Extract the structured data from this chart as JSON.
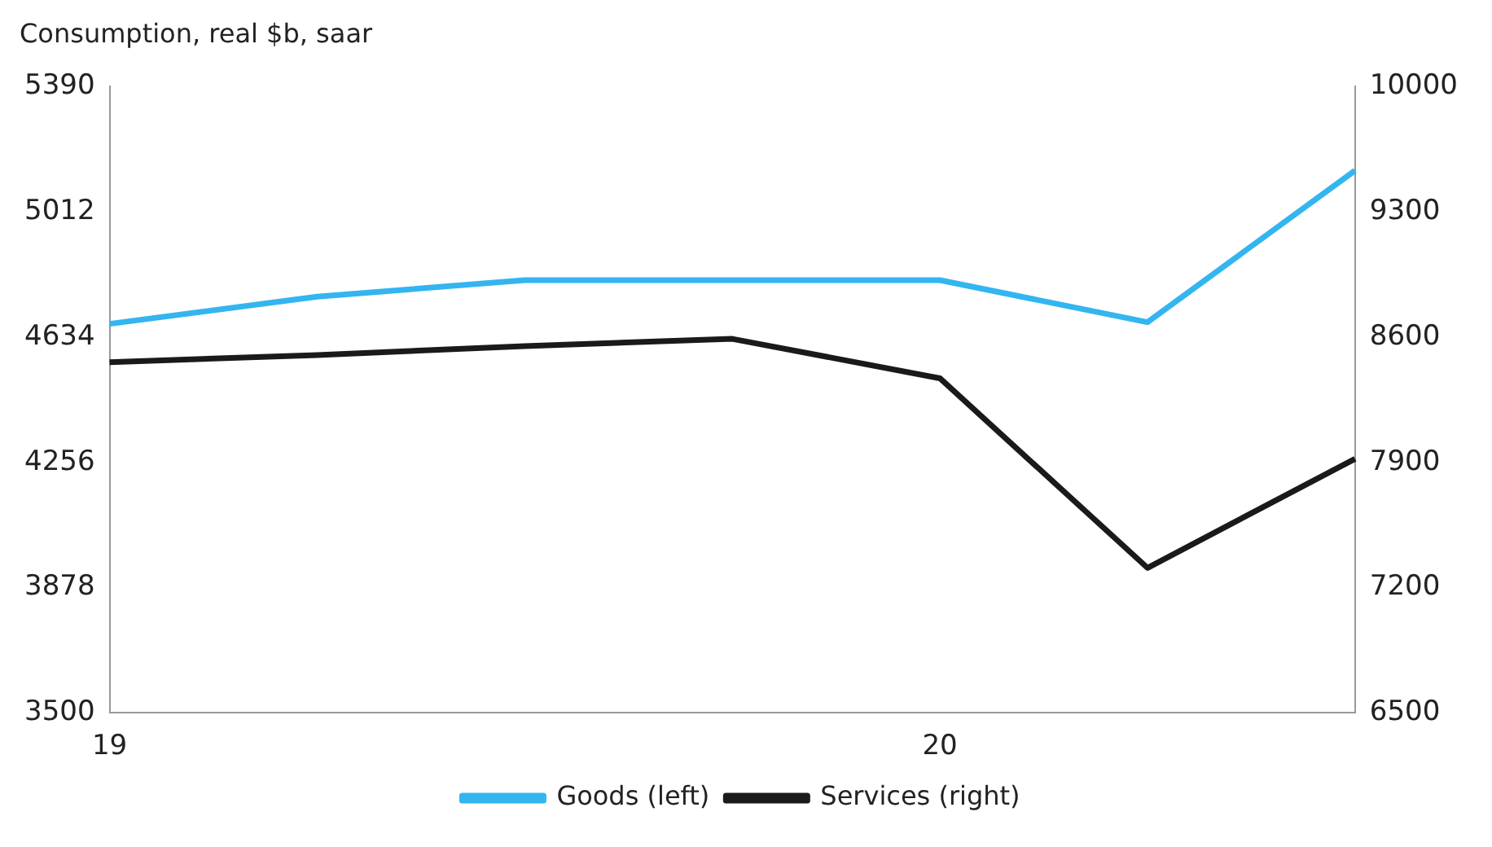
{
  "chart_data": {
    "type": "line",
    "ylabel": "Consumption, real $b, saar",
    "categories": [
      "19",
      null,
      null,
      null,
      "20",
      null,
      null
    ],
    "series": [
      {
        "name": "Goods (left)",
        "color": "#33b5f0",
        "values": [
          4674,
          4756,
          4806,
          4806,
          4806,
          4679,
          5137
        ]
      },
      {
        "name": "Services (right)",
        "color": "#1a1a1a",
        "values": [
          8460,
          8500,
          8550,
          8590,
          8370,
          7310,
          7920
        ],
        "axis": "y2"
      }
    ],
    "ylim": [
      3500,
      5390
    ],
    "yticks": [
      3500,
      3878,
      4256,
      4634,
      5012,
      5390
    ],
    "y2lim": [
      6500,
      10000
    ],
    "y2ticks": [
      6500,
      7200,
      7900,
      8600,
      9300,
      10000
    ],
    "grid": false,
    "legend": "bottom",
    "marker": "none",
    "line_style": "solid"
  }
}
